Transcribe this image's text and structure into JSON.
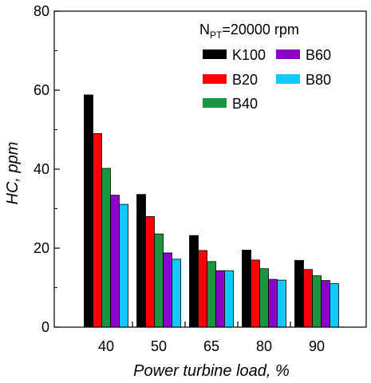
{
  "chart_data": {
    "type": "bar",
    "categories": [
      "40",
      "50",
      "65",
      "80",
      "90"
    ],
    "series": [
      {
        "name": "K100",
        "color": "#000000",
        "values": [
          58.8,
          33.6,
          23.2,
          19.5,
          16.9
        ]
      },
      {
        "name": "B20",
        "color": "#ff0000",
        "values": [
          49.0,
          28.0,
          19.4,
          17.0,
          14.6
        ]
      },
      {
        "name": "B40",
        "color": "#1a9641",
        "values": [
          40.2,
          23.6,
          16.6,
          14.8,
          13.0
        ]
      },
      {
        "name": "B60",
        "color": "#8e00c8",
        "values": [
          33.4,
          18.8,
          14.3,
          12.1,
          11.8
        ]
      },
      {
        "name": "B80",
        "color": "#12c8ff",
        "values": [
          31.1,
          17.2,
          14.3,
          11.9,
          11.0
        ]
      }
    ],
    "xlabel": "Power turbine load, %",
    "ylabel": "HC, ppm",
    "ylim": [
      0,
      80
    ],
    "yticks": [
      0,
      20,
      40,
      60,
      80
    ],
    "grid": false,
    "legend_position": "top-right",
    "annotation": {
      "main": "N",
      "sub": "PT",
      "rest": "=20000 rpm"
    }
  }
}
